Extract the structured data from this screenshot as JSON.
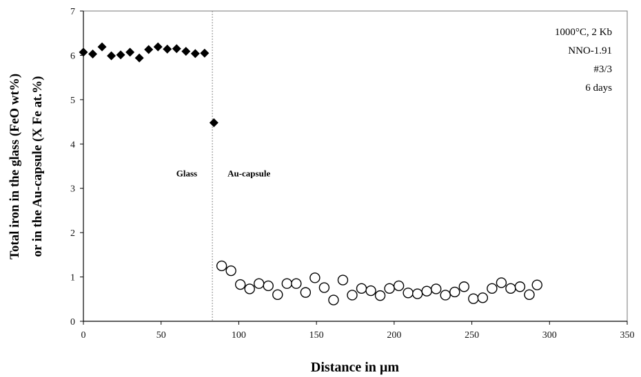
{
  "chart_data": {
    "type": "scatter",
    "title": "",
    "xlabel": "Distance in µm",
    "ylabel_lines": [
      "Total iron in the glass (FeO wt%)",
      "or in the Au-capsule (X Fe at.%)"
    ],
    "xlim": [
      0,
      350
    ],
    "ylim": [
      0,
      7
    ],
    "xticks": [
      0,
      50,
      100,
      150,
      200,
      250,
      300,
      350
    ],
    "yticks": [
      0,
      1,
      2,
      3,
      4,
      5,
      6,
      7
    ],
    "grid": false,
    "boundary_x": 83,
    "region_labels": [
      "Glass",
      "Au-capsule"
    ],
    "annotations": [
      "1000°C, 2 Kb",
      "NNO-1.91",
      "#3/3",
      "6 days"
    ],
    "series": [
      {
        "marker": "filled-diamond",
        "color": "#000000",
        "x": [
          0,
          6,
          12,
          18,
          24,
          30,
          36,
          42,
          48,
          54,
          60,
          66,
          72,
          78,
          84
        ],
        "y": [
          6.07,
          6.03,
          6.19,
          5.99,
          6.01,
          6.07,
          5.94,
          6.13,
          6.19,
          6.14,
          6.15,
          6.09,
          6.04,
          6.05,
          4.48
        ]
      },
      {
        "marker": "open-circle",
        "color": "#000000",
        "x": [
          89,
          95,
          101,
          107,
          113,
          119,
          125,
          131,
          137,
          143,
          149,
          155,
          161,
          167,
          173,
          179,
          185,
          191,
          197,
          203,
          209,
          215,
          221,
          227,
          233,
          239,
          245,
          251,
          257,
          263,
          269,
          275,
          281,
          287,
          292
        ],
        "y": [
          1.25,
          1.14,
          0.83,
          0.73,
          0.85,
          0.8,
          0.6,
          0.85,
          0.85,
          0.65,
          0.98,
          0.76,
          0.48,
          0.93,
          0.59,
          0.74,
          0.69,
          0.58,
          0.74,
          0.8,
          0.64,
          0.62,
          0.68,
          0.73,
          0.59,
          0.66,
          0.78,
          0.51,
          0.53,
          0.74,
          0.87,
          0.74,
          0.78,
          0.6,
          0.82
        ]
      }
    ]
  }
}
